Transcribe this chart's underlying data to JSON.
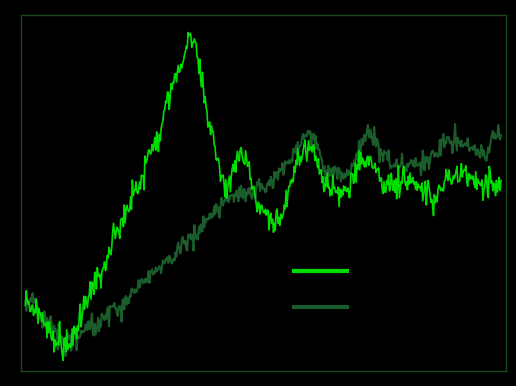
{
  "background_color": "#000000",
  "plot_bg_color": "#000000",
  "gold_color": "#00dd00",
  "copper_color": "#1a5c2a",
  "gold_linewidth": 1.2,
  "copper_linewidth": 1.5,
  "spine_color": "#1a4a1a",
  "figsize": [
    5.16,
    3.86
  ],
  "dpi": 100,
  "n_points": 530,
  "seed": 77,
  "gold_waypoints_t": [
    0.0,
    0.04,
    0.08,
    0.13,
    0.2,
    0.28,
    0.32,
    0.35,
    0.38,
    0.42,
    0.46,
    0.5,
    0.53,
    0.57,
    0.6,
    0.63,
    0.67,
    0.72,
    0.76,
    0.8,
    0.85,
    0.9,
    0.95,
    1.0
  ],
  "gold_waypoints_v": [
    28,
    22,
    15,
    25,
    45,
    72,
    85,
    95,
    78,
    58,
    65,
    52,
    50,
    65,
    70,
    60,
    58,
    65,
    58,
    60,
    55,
    63,
    60,
    62
  ],
  "copper_waypoints_t": [
    0.0,
    0.04,
    0.08,
    0.13,
    0.2,
    0.28,
    0.35,
    0.42,
    0.48,
    0.52,
    0.57,
    0.6,
    0.63,
    0.67,
    0.72,
    0.76,
    0.8,
    0.85,
    0.9,
    0.95,
    1.0
  ],
  "copper_waypoints_v": [
    28,
    24,
    18,
    22,
    28,
    38,
    48,
    58,
    63,
    65,
    78,
    82,
    72,
    68,
    78,
    72,
    70,
    72,
    75,
    72,
    78
  ]
}
